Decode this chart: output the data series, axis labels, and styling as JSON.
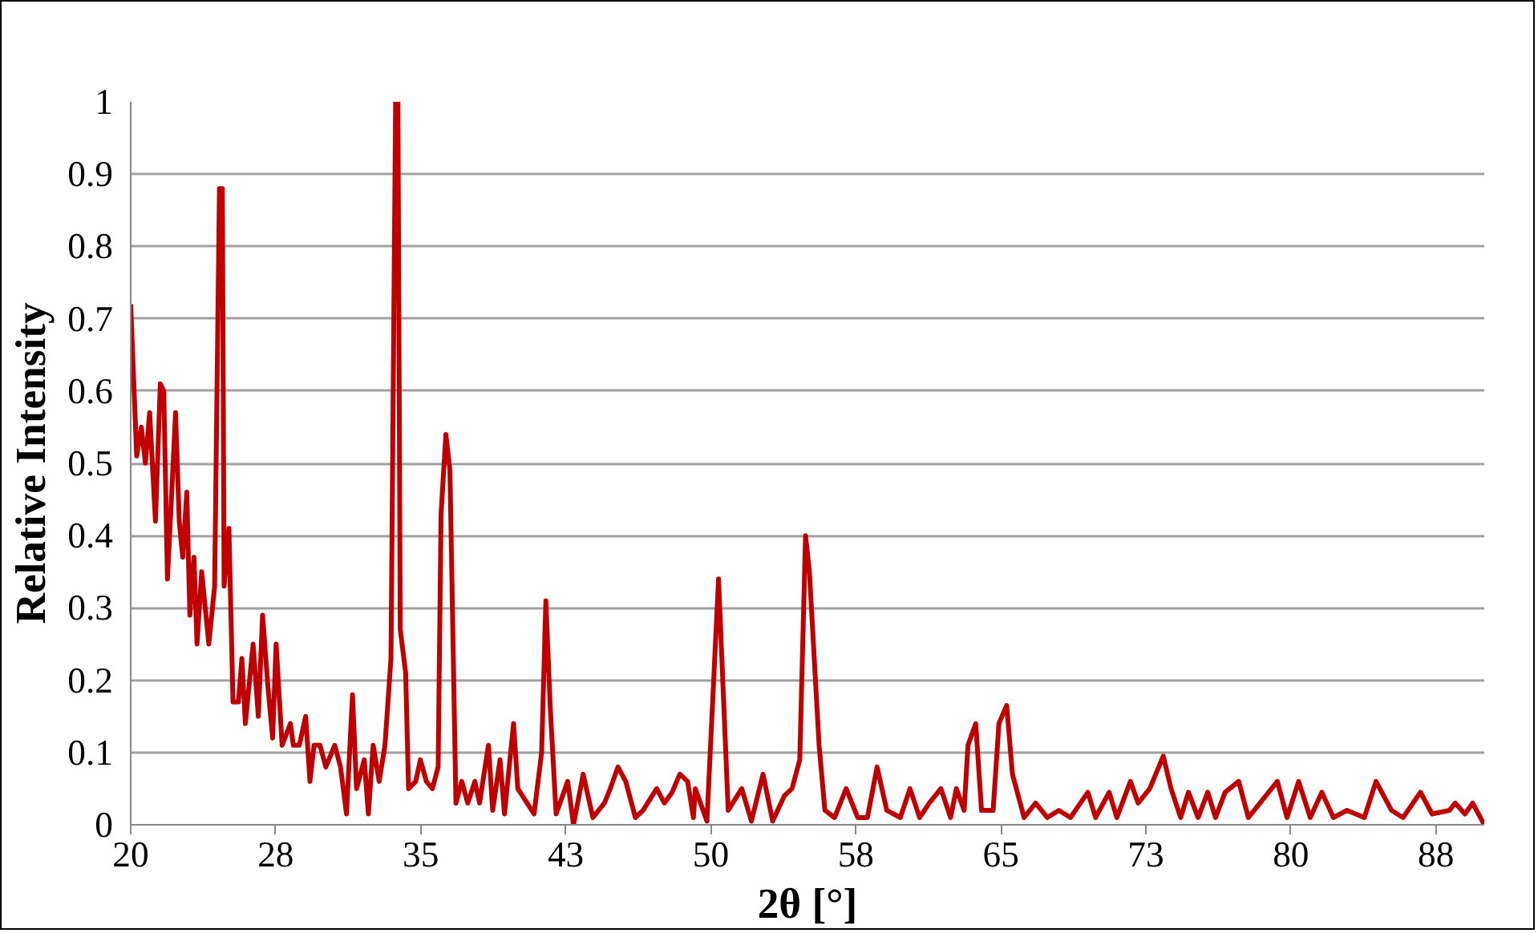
{
  "chart_data": {
    "type": "line",
    "xlabel": "2θ [°]",
    "ylabel": "Relative Intensity",
    "xlim": [
      20,
      90
    ],
    "ylim": [
      0,
      1
    ],
    "xticks": [
      20,
      {
        "value": 27.5,
        "label": "28"
      },
      35,
      {
        "value": 42.5,
        "label": "43"
      },
      50,
      {
        "value": 57.5,
        "label": "58"
      },
      65,
      {
        "value": 72.5,
        "label": "73"
      },
      80,
      {
        "value": 87.5,
        "label": "88"
      }
    ],
    "yticks": [
      0,
      0.1,
      0.2,
      0.3,
      0.4,
      0.5,
      0.6,
      0.7,
      0.8,
      0.9,
      1
    ],
    "grid": "y",
    "marker": "none",
    "line_style": "solid",
    "series": [
      {
        "color": "#c00000",
        "x": [
          20.0,
          20.31,
          20.55,
          20.76,
          20.98,
          21.28,
          21.53,
          21.71,
          21.9,
          22.14,
          22.32,
          22.51,
          22.69,
          22.9,
          23.06,
          23.27,
          23.43,
          23.67,
          24.04,
          24.34,
          24.59,
          24.74,
          24.83,
          25.08,
          25.29,
          25.57,
          25.75,
          25.93,
          26.33,
          26.6,
          26.82,
          27.1,
          27.34,
          27.52,
          27.83,
          28.26,
          28.41,
          28.72,
          29.05,
          29.27,
          29.48,
          29.79,
          30.09,
          30.55,
          30.85,
          31.16,
          31.47,
          31.68,
          32.08,
          32.29,
          32.54,
          32.85,
          33.15,
          33.46,
          33.7,
          33.82,
          33.94,
          34.22,
          34.37,
          34.74,
          34.98,
          35.29,
          35.6,
          35.9,
          36.05,
          36.3,
          36.51,
          36.82,
          37.12,
          37.43,
          37.8,
          38.04,
          38.5,
          38.72,
          39.1,
          39.33,
          39.8,
          40.02,
          40.5,
          40.86,
          41.25,
          41.47,
          41.7,
          42.0,
          42.6,
          42.9,
          43.4,
          43.9,
          44.5,
          44.8,
          45.2,
          45.6,
          46.1,
          46.5,
          47.2,
          47.6,
          48.0,
          48.4,
          48.8,
          49.1,
          49.2,
          49.8,
          50.4,
          50.9,
          51.6,
          52.1,
          52.7,
          53.2,
          53.8,
          54.2,
          54.6,
          54.9,
          55.1,
          55.6,
          55.9,
          56.4,
          57.0,
          57.6,
          58.1,
          58.6,
          59.1,
          59.8,
          60.3,
          60.8,
          61.3,
          61.9,
          62.4,
          62.7,
          63.1,
          63.3,
          63.7,
          64.0,
          64.6,
          64.9,
          65.3,
          65.6,
          66.2,
          66.8,
          67.4,
          68.0,
          68.6,
          69.5,
          69.9,
          70.6,
          71.0,
          71.7,
          72.1,
          72.7,
          73.4,
          73.8,
          74.3,
          74.7,
          75.2,
          75.7,
          76.1,
          76.6,
          77.3,
          77.8,
          78.4,
          79.3,
          79.8,
          80.4,
          81.0,
          81.6,
          82.2,
          82.9,
          83.8,
          84.4,
          85.2,
          85.8,
          86.7,
          87.3,
          88.2,
          88.5,
          89.0,
          89.4,
          90.0
        ],
        "values": [
          0.72,
          0.51,
          0.55,
          0.5,
          0.57,
          0.42,
          0.61,
          0.6,
          0.34,
          0.47,
          0.57,
          0.42,
          0.37,
          0.46,
          0.29,
          0.37,
          0.25,
          0.35,
          0.25,
          0.33,
          0.88,
          0.88,
          0.33,
          0.41,
          0.17,
          0.17,
          0.23,
          0.14,
          0.25,
          0.15,
          0.29,
          0.19,
          0.12,
          0.25,
          0.11,
          0.14,
          0.11,
          0.11,
          0.15,
          0.06,
          0.11,
          0.11,
          0.08,
          0.11,
          0.08,
          0.015,
          0.18,
          0.05,
          0.09,
          0.015,
          0.11,
          0.06,
          0.11,
          0.23,
          1.0,
          1.0,
          0.27,
          0.21,
          0.05,
          0.06,
          0.09,
          0.06,
          0.05,
          0.08,
          0.43,
          0.54,
          0.49,
          0.03,
          0.06,
          0.03,
          0.06,
          0.03,
          0.11,
          0.02,
          0.09,
          0.015,
          0.14,
          0.05,
          0.03,
          0.015,
          0.1,
          0.31,
          0.16,
          0.015,
          0.06,
          0.0,
          0.07,
          0.01,
          0.03,
          0.05,
          0.08,
          0.06,
          0.01,
          0.02,
          0.05,
          0.03,
          0.045,
          0.07,
          0.06,
          0.01,
          0.05,
          0.005,
          0.34,
          0.02,
          0.05,
          0.005,
          0.07,
          0.005,
          0.04,
          0.05,
          0.09,
          0.4,
          0.35,
          0.11,
          0.02,
          0.01,
          0.05,
          0.01,
          0.01,
          0.08,
          0.02,
          0.01,
          0.05,
          0.01,
          0.03,
          0.05,
          0.01,
          0.05,
          0.02,
          0.11,
          0.14,
          0.02,
          0.02,
          0.14,
          0.165,
          0.07,
          0.01,
          0.03,
          0.01,
          0.02,
          0.01,
          0.045,
          0.01,
          0.045,
          0.01,
          0.06,
          0.03,
          0.05,
          0.095,
          0.05,
          0.01,
          0.045,
          0.01,
          0.045,
          0.01,
          0.045,
          0.06,
          0.01,
          0.03,
          0.06,
          0.01,
          0.06,
          0.01,
          0.045,
          0.01,
          0.02,
          0.01,
          0.06,
          0.02,
          0.01,
          0.045,
          0.015,
          0.02,
          0.03,
          0.015,
          0.03,
          0.0
        ]
      }
    ]
  }
}
